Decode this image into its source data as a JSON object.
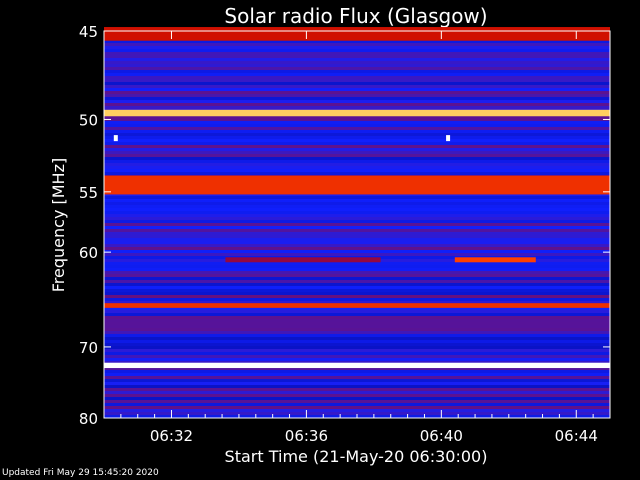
{
  "chart_data": {
    "type": "heatmap",
    "title": "Solar radio Flux (Glasgow)",
    "xlabel": "Start Time (21-May-20 06:30:00)",
    "ylabel": "Frequency [MHz]",
    "x_ticks": [
      "06:32",
      "06:36",
      "06:40",
      "06:44"
    ],
    "x_tick_minutes": [
      2,
      6,
      10,
      14
    ],
    "xlim_minutes": [
      0,
      15
    ],
    "y_ticks": [
      "45",
      "50",
      "55",
      "60",
      "70",
      "80"
    ],
    "y_tick_values": [
      45,
      50,
      55,
      60,
      70,
      80
    ],
    "ylim": [
      45,
      80
    ],
    "y_scale": "reciprocal",
    "colormap": [
      "#000070",
      "#1020ff",
      "#c00000",
      "#ff4000",
      "#ffff80",
      "#ffffff"
    ],
    "bands": [
      {
        "freq_start": 44.8,
        "freq_end": 45.5,
        "intensity": 0.45
      },
      {
        "freq_start": 49.4,
        "freq_end": 49.8,
        "intensity": 0.75
      },
      {
        "freq_start": 53.8,
        "freq_end": 55.2,
        "intensity": 0.55
      },
      {
        "freq_start": 65.0,
        "freq_end": 65.5,
        "intensity": 0.55
      },
      {
        "freq_start": 72.0,
        "freq_end": 72.7,
        "intensity": 1.0
      }
    ],
    "bursts": [
      {
        "t_start": 3.6,
        "t_end": 8.2,
        "freq": 60.7,
        "intensity": 0.35
      },
      {
        "t_start": 10.4,
        "t_end": 12.8,
        "freq": 60.7,
        "intensity": 0.6
      }
    ],
    "spikes": [
      {
        "t": 0.35,
        "freq": 51.2,
        "intensity": 1.0
      },
      {
        "t": 10.2,
        "freq": 51.2,
        "intensity": 1.0
      }
    ]
  },
  "footer": {
    "updated": "Updated Fri May 29 15:45:20 2020"
  }
}
